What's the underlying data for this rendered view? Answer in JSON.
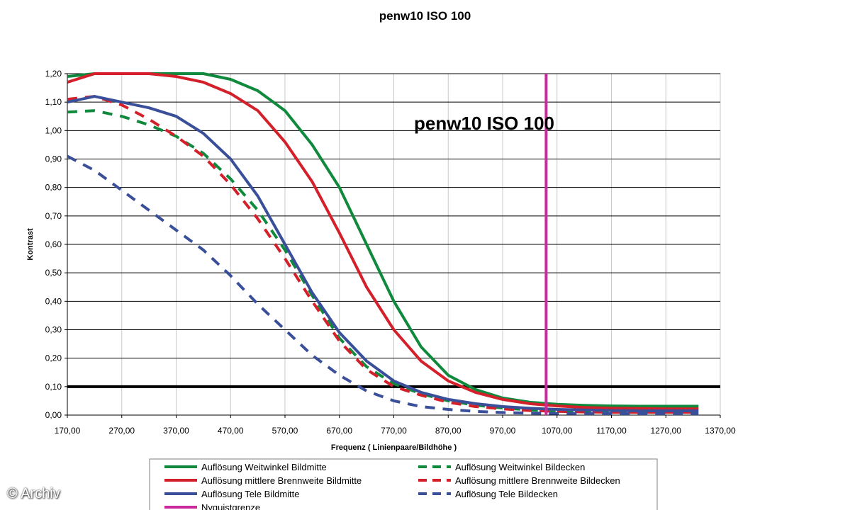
{
  "title": "penw10   ISO 100",
  "watermark": "© Archiv",
  "chart_data": {
    "type": "line",
    "title": "penw10   ISO 100",
    "annotation": "penw10   ISO 100",
    "xlabel": "Frequenz ( Linienpaare/Bildhöhe )",
    "ylabel": "Kontrast",
    "xlim": [
      170,
      1370
    ],
    "ylim": [
      0,
      1.2
    ],
    "x_ticks": [
      "170,00",
      "270,00",
      "370,00",
      "470,00",
      "570,00",
      "670,00",
      "770,00",
      "870,00",
      "970,00",
      "1070,00",
      "1170,00",
      "1270,00",
      "1370,00"
    ],
    "y_ticks": [
      "0,00",
      "0,10",
      "0,20",
      "0,30",
      "0,40",
      "0,50",
      "0,60",
      "0,70",
      "0,80",
      "0,90",
      "1,00",
      "1,10",
      "1,20"
    ],
    "grid": "horizontal",
    "legend_position": "bottom",
    "colors": {
      "green": "#0f8a3c",
      "red": "#d4202a",
      "blue": "#3a4f9a",
      "magenta": "#cc2a9c",
      "black": "#000000"
    },
    "series": [
      {
        "name": "Auflösung Weitwinkel Bildmitte",
        "color": "#0f8a3c",
        "dash": false,
        "x": [
          170,
          220,
          270,
          320,
          370,
          420,
          470,
          520,
          570,
          620,
          670,
          720,
          770,
          820,
          870,
          920,
          970,
          1020,
          1070,
          1120,
          1170,
          1220,
          1270,
          1330
        ],
        "y": [
          1.19,
          1.2,
          1.2,
          1.2,
          1.2,
          1.2,
          1.18,
          1.14,
          1.07,
          0.95,
          0.8,
          0.6,
          0.4,
          0.24,
          0.14,
          0.09,
          0.06,
          0.045,
          0.038,
          0.034,
          0.032,
          0.031,
          0.031,
          0.031
        ]
      },
      {
        "name": "Auflösung Weitwinkel Bildecken",
        "color": "#0f8a3c",
        "dash": true,
        "x": [
          170,
          220,
          270,
          320,
          370,
          420,
          470,
          520,
          570,
          620,
          670,
          720,
          770,
          820,
          870,
          920,
          970,
          1020,
          1070,
          1120,
          1170,
          1220,
          1270,
          1330
        ],
        "y": [
          1.065,
          1.07,
          1.05,
          1.02,
          0.98,
          0.92,
          0.83,
          0.72,
          0.58,
          0.42,
          0.27,
          0.17,
          0.11,
          0.075,
          0.05,
          0.035,
          0.025,
          0.018,
          0.014,
          0.012,
          0.011,
          0.01,
          0.01,
          0.01
        ]
      },
      {
        "name": "Auflösung mittlere Brennweite Bildmitte",
        "color": "#d4202a",
        "dash": false,
        "x": [
          170,
          220,
          270,
          320,
          370,
          420,
          470,
          520,
          570,
          620,
          670,
          720,
          770,
          820,
          870,
          920,
          970,
          1020,
          1070,
          1120,
          1170,
          1220,
          1270,
          1330
        ],
        "y": [
          1.17,
          1.2,
          1.2,
          1.2,
          1.19,
          1.17,
          1.13,
          1.07,
          0.96,
          0.82,
          0.64,
          0.45,
          0.3,
          0.19,
          0.12,
          0.08,
          0.055,
          0.04,
          0.032,
          0.027,
          0.024,
          0.023,
          0.022,
          0.022
        ]
      },
      {
        "name": "Auflösung mittlere Brennweite Bildecken",
        "color": "#d4202a",
        "dash": true,
        "x": [
          170,
          220,
          270,
          320,
          370,
          420,
          470,
          520,
          570,
          620,
          670,
          720,
          770,
          820,
          870,
          920,
          970,
          1020,
          1070,
          1120,
          1170,
          1220,
          1270,
          1330
        ],
        "y": [
          1.11,
          1.12,
          1.09,
          1.04,
          0.98,
          0.91,
          0.81,
          0.69,
          0.55,
          0.4,
          0.26,
          0.16,
          0.1,
          0.07,
          0.045,
          0.03,
          0.022,
          0.016,
          0.013,
          0.011,
          0.01,
          0.01,
          0.01,
          0.01
        ]
      },
      {
        "name": "Auflösung Tele Bildmitte",
        "color": "#3a4f9a",
        "dash": false,
        "x": [
          170,
          220,
          270,
          320,
          370,
          420,
          470,
          520,
          570,
          620,
          670,
          720,
          770,
          820,
          870,
          920,
          970,
          1020,
          1070,
          1120,
          1170,
          1220,
          1270,
          1330
        ],
        "y": [
          1.1,
          1.12,
          1.1,
          1.08,
          1.05,
          0.99,
          0.9,
          0.77,
          0.6,
          0.43,
          0.29,
          0.19,
          0.12,
          0.08,
          0.055,
          0.04,
          0.03,
          0.024,
          0.02,
          0.018,
          0.016,
          0.015,
          0.015,
          0.015
        ]
      },
      {
        "name": "Auflösung Tele Bildecken",
        "color": "#3a4f9a",
        "dash": true,
        "x": [
          170,
          220,
          270,
          320,
          370,
          420,
          470,
          520,
          570,
          620,
          670,
          720,
          770,
          820,
          870,
          920,
          970,
          1020,
          1070,
          1120,
          1170,
          1220,
          1270,
          1330
        ],
        "y": [
          0.91,
          0.86,
          0.79,
          0.72,
          0.65,
          0.58,
          0.49,
          0.39,
          0.3,
          0.21,
          0.14,
          0.085,
          0.05,
          0.03,
          0.02,
          0.013,
          0.009,
          0.007,
          0.006,
          0.005,
          0.005,
          0.005,
          0.005,
          0.005
        ]
      },
      {
        "name": "Nyquistgrenze",
        "color": "#cc2a9c",
        "dash": false,
        "orientation": "vertical",
        "x_value": 1050,
        "y": [
          0,
          1.2
        ]
      }
    ],
    "reference_lines": [
      {
        "orientation": "horizontal",
        "y_value": 0.1,
        "color": "#000000"
      }
    ],
    "legend_order": [
      0,
      1,
      2,
      3,
      4,
      5,
      6
    ]
  }
}
